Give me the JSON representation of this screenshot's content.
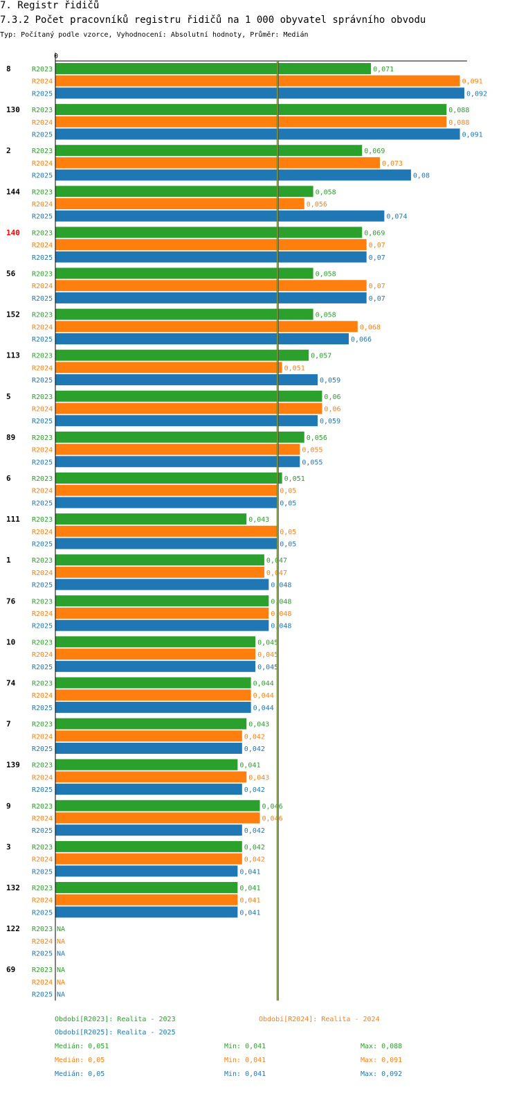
{
  "section_title": "7. Registr řidičů",
  "chart_title": "7.3.2 Počet pracovníků registru řidičů na 1 000 obyvatel správního obvodu",
  "subtitle": "Typ: Počítaný podle vzorce, Vyhodnocení: Absolutní hodnoty, Průměr: Medián",
  "colors": {
    "R2023": "#2ca02c",
    "R2024": "#ff7f0e",
    "R2025": "#1f77b4",
    "highlight": "#ff0000"
  },
  "chart_data": {
    "type": "bar",
    "orientation": "horizontal",
    "axis_zero_label": "0",
    "xlim": [
      0,
      0.092
    ],
    "median": 0.05,
    "highlight_category": "140",
    "categories": [
      "8",
      "130",
      "2",
      "144",
      "140",
      "56",
      "152",
      "113",
      "5",
      "89",
      "6",
      "111",
      "1",
      "76",
      "10",
      "74",
      "7",
      "139",
      "9",
      "3",
      "132",
      "122",
      "69"
    ],
    "series": [
      {
        "name": "R2023",
        "values": [
          0.071,
          0.088,
          0.069,
          0.058,
          0.069,
          0.058,
          0.058,
          0.057,
          0.06,
          0.056,
          0.051,
          0.043,
          0.047,
          0.048,
          0.045,
          0.044,
          0.043,
          0.041,
          0.046,
          0.042,
          0.041,
          null,
          null
        ],
        "labels": [
          "0,071",
          "0,088",
          "0,069",
          "0,058",
          "0,069",
          "0,058",
          "0,058",
          "0,057",
          "0,06",
          "0,056",
          "0,051",
          "0,043",
          "0,047",
          "0,048",
          "0,045",
          "0,044",
          "0,043",
          "0,041",
          "0,046",
          "0,042",
          "0,041",
          "NA",
          "NA"
        ]
      },
      {
        "name": "R2024",
        "values": [
          0.091,
          0.088,
          0.073,
          0.056,
          0.07,
          0.07,
          0.068,
          0.051,
          0.06,
          0.055,
          0.05,
          0.05,
          0.047,
          0.048,
          0.045,
          0.044,
          0.042,
          0.043,
          0.046,
          0.042,
          0.041,
          null,
          null
        ],
        "labels": [
          "0,091",
          "0,088",
          "0,073",
          "0,056",
          "0,07",
          "0,07",
          "0,068",
          "0,051",
          "0,06",
          "0,055",
          "0,05",
          "0,05",
          "0,047",
          "0,048",
          "0,045",
          "0,044",
          "0,042",
          "0,043",
          "0,046",
          "0,042",
          "0,041",
          "NA",
          "NA"
        ]
      },
      {
        "name": "R2025",
        "values": [
          0.092,
          0.091,
          0.08,
          0.074,
          0.07,
          0.07,
          0.066,
          0.059,
          0.059,
          0.055,
          0.05,
          0.05,
          0.048,
          0.048,
          0.045,
          0.044,
          0.042,
          0.042,
          0.042,
          0.041,
          0.041,
          null,
          null
        ],
        "labels": [
          "0,092",
          "0,091",
          "0,08",
          "0,074",
          "0,07",
          "0,07",
          "0,066",
          "0,059",
          "0,059",
          "0,055",
          "0,05",
          "0,05",
          "0,048",
          "0,048",
          "0,045",
          "0,044",
          "0,042",
          "0,042",
          "0,042",
          "0,041",
          "0,041",
          "NA",
          "NA"
        ]
      }
    ]
  },
  "legend": {
    "periods": [
      {
        "id": "R2023",
        "text": "Období[R2023]: Realita - 2023"
      },
      {
        "id": "R2024",
        "text": "Období[R2024]: Realita - 2024"
      },
      {
        "id": "R2025",
        "text": "Období[R2025]: Realita - 2025"
      }
    ],
    "stats": [
      {
        "id": "R2023",
        "median": "Medián: 0,051",
        "min": "Min: 0,041",
        "max": "Max: 0,088"
      },
      {
        "id": "R2024",
        "median": "Medián: 0,05",
        "min": "Min: 0,041",
        "max": "Max: 0,091"
      },
      {
        "id": "R2025",
        "median": "Medián: 0,05",
        "min": "Min: 0,041",
        "max": "Max: 0,092"
      }
    ]
  }
}
